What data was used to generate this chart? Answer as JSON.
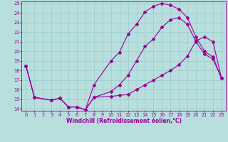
{
  "xlabel": "Windchill (Refroidissement éolien,°C)",
  "bg_color": "#b8dede",
  "line_color": "#990099",
  "grid_color": "#99cccc",
  "xlim_min": 0,
  "xlim_max": 23,
  "ylim_min": 14,
  "ylim_max": 25,
  "xticks": [
    0,
    1,
    2,
    3,
    4,
    5,
    6,
    7,
    8,
    9,
    10,
    11,
    12,
    13,
    14,
    15,
    16,
    17,
    18,
    19,
    20,
    21,
    22,
    23
  ],
  "yticks": [
    14,
    15,
    16,
    17,
    18,
    19,
    20,
    21,
    22,
    23,
    24,
    25
  ],
  "curve_top_x": [
    0,
    1,
    3,
    4,
    5,
    6,
    7,
    8,
    10,
    11,
    12,
    13,
    14,
    15,
    16,
    17,
    18,
    19,
    20,
    21,
    22,
    23
  ],
  "curve_top_y": [
    18.5,
    15.2,
    14.9,
    15.1,
    14.2,
    14.2,
    13.9,
    16.5,
    19.0,
    19.9,
    21.8,
    22.8,
    24.1,
    24.7,
    25.0,
    24.8,
    24.4,
    23.5,
    21.5,
    20.0,
    19.4,
    17.2
  ],
  "curve_bot_x": [
    0,
    1,
    3,
    4,
    5,
    6,
    7,
    8,
    10,
    11,
    12,
    13,
    14,
    15,
    16,
    17,
    18,
    19,
    20,
    21,
    22,
    23
  ],
  "curve_bot_y": [
    18.5,
    15.2,
    14.9,
    15.1,
    14.2,
    14.2,
    13.9,
    15.2,
    15.3,
    15.4,
    15.5,
    16.0,
    16.5,
    17.0,
    17.5,
    18.0,
    18.6,
    19.5,
    21.1,
    21.5,
    21.0,
    17.2
  ],
  "curve_mid_x": [
    0,
    1,
    3,
    4,
    5,
    6,
    7,
    8,
    10,
    11,
    12,
    13,
    14,
    15,
    16,
    17,
    18,
    19,
    20,
    21,
    22,
    23
  ],
  "curve_mid_y": [
    18.5,
    15.2,
    14.9,
    15.1,
    14.2,
    14.2,
    13.9,
    15.2,
    15.8,
    16.5,
    17.5,
    19.0,
    20.5,
    21.3,
    22.5,
    23.3,
    23.5,
    22.8,
    21.0,
    19.7,
    19.2,
    17.2
  ],
  "xlabel_fontsize": 5.5,
  "tick_fontsize": 4.8,
  "marker_size": 2.0,
  "linewidth": 0.8
}
